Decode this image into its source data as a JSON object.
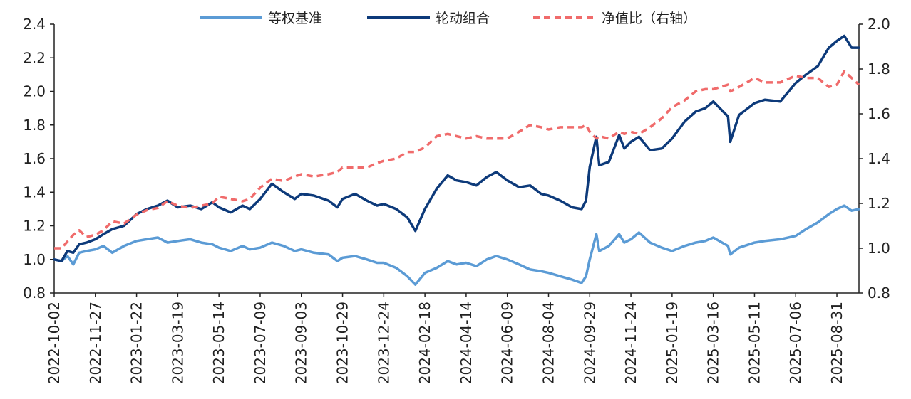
{
  "chart_data": {
    "type": "line",
    "title": "",
    "xlabel": "",
    "ylabel_left": "",
    "ylabel_right": "",
    "ylim_left": [
      0.8,
      2.4
    ],
    "yticks_left": [
      0.8,
      1.0,
      1.2,
      1.4,
      1.6,
      1.8,
      2.0,
      2.2,
      2.4
    ],
    "ylim_right": [
      0.8,
      2.0
    ],
    "yticks_right": [
      0.8,
      1.0,
      1.2,
      1.4,
      1.6,
      1.8,
      2.0
    ],
    "grid": false,
    "legend_position": "top-center",
    "x_range": [
      "2022-10-02",
      "2025-09-30"
    ],
    "x_tick_labels": [
      "2022-10-02",
      "2022-11-27",
      "2023-01-22",
      "2023-03-19",
      "2023-05-14",
      "2023-07-09",
      "2023-09-03",
      "2023-10-29",
      "2023-12-24",
      "2024-02-18",
      "2024-04-14",
      "2024-06-09",
      "2024-08-04",
      "2024-09-29",
      "2024-11-24",
      "2025-01-19",
      "2025-03-16",
      "2025-05-11",
      "2025-07-06",
      "2025-08-31"
    ],
    "series": [
      {
        "name": "等权基准",
        "axis": "left",
        "color": "#5b9bd5",
        "style": "solid",
        "points": [
          [
            "2022-10-02",
            1.0
          ],
          [
            "2022-10-12",
            0.99
          ],
          [
            "2022-10-20",
            1.02
          ],
          [
            "2022-10-28",
            0.97
          ],
          [
            "2022-11-05",
            1.04
          ],
          [
            "2022-11-15",
            1.05
          ],
          [
            "2022-11-27",
            1.06
          ],
          [
            "2022-12-08",
            1.08
          ],
          [
            "2022-12-20",
            1.04
          ],
          [
            "2023-01-05",
            1.08
          ],
          [
            "2023-01-22",
            1.11
          ],
          [
            "2023-02-05",
            1.12
          ],
          [
            "2023-02-20",
            1.13
          ],
          [
            "2023-03-05",
            1.1
          ],
          [
            "2023-03-19",
            1.11
          ],
          [
            "2023-04-05",
            1.12
          ],
          [
            "2023-04-20",
            1.1
          ],
          [
            "2023-05-05",
            1.09
          ],
          [
            "2023-05-14",
            1.07
          ],
          [
            "2023-05-30",
            1.05
          ],
          [
            "2023-06-15",
            1.08
          ],
          [
            "2023-06-25",
            1.06
          ],
          [
            "2023-07-09",
            1.07
          ],
          [
            "2023-07-25",
            1.1
          ],
          [
            "2023-08-10",
            1.08
          ],
          [
            "2023-08-25",
            1.05
          ],
          [
            "2023-09-03",
            1.06
          ],
          [
            "2023-09-20",
            1.04
          ],
          [
            "2023-10-10",
            1.03
          ],
          [
            "2023-10-22",
            0.99
          ],
          [
            "2023-10-29",
            1.01
          ],
          [
            "2023-11-15",
            1.02
          ],
          [
            "2023-12-01",
            1.0
          ],
          [
            "2023-12-15",
            0.98
          ],
          [
            "2023-12-24",
            0.98
          ],
          [
            "2024-01-10",
            0.95
          ],
          [
            "2024-01-25",
            0.9
          ],
          [
            "2024-02-05",
            0.85
          ],
          [
            "2024-02-18",
            0.92
          ],
          [
            "2024-03-05",
            0.95
          ],
          [
            "2024-03-20",
            0.99
          ],
          [
            "2024-04-01",
            0.97
          ],
          [
            "2024-04-14",
            0.98
          ],
          [
            "2024-04-28",
            0.96
          ],
          [
            "2024-05-12",
            1.0
          ],
          [
            "2024-05-25",
            1.02
          ],
          [
            "2024-06-09",
            1.0
          ],
          [
            "2024-06-25",
            0.97
          ],
          [
            "2024-07-10",
            0.94
          ],
          [
            "2024-07-25",
            0.93
          ],
          [
            "2024-08-04",
            0.92
          ],
          [
            "2024-08-20",
            0.9
          ],
          [
            "2024-09-05",
            0.88
          ],
          [
            "2024-09-18",
            0.86
          ],
          [
            "2024-09-24",
            0.9
          ],
          [
            "2024-09-29",
            1.0
          ],
          [
            "2024-10-08",
            1.15
          ],
          [
            "2024-10-12",
            1.05
          ],
          [
            "2024-10-25",
            1.08
          ],
          [
            "2024-11-08",
            1.15
          ],
          [
            "2024-11-15",
            1.1
          ],
          [
            "2024-11-24",
            1.12
          ],
          [
            "2024-12-05",
            1.16
          ],
          [
            "2024-12-20",
            1.1
          ],
          [
            "2025-01-05",
            1.07
          ],
          [
            "2025-01-19",
            1.05
          ],
          [
            "2025-02-05",
            1.08
          ],
          [
            "2025-02-20",
            1.1
          ],
          [
            "2025-03-05",
            1.11
          ],
          [
            "2025-03-16",
            1.13
          ],
          [
            "2025-04-05",
            1.08
          ],
          [
            "2025-04-08",
            1.03
          ],
          [
            "2025-04-20",
            1.07
          ],
          [
            "2025-05-11",
            1.1
          ],
          [
            "2025-05-25",
            1.11
          ],
          [
            "2025-06-15",
            1.12
          ],
          [
            "2025-07-06",
            1.14
          ],
          [
            "2025-07-20",
            1.18
          ],
          [
            "2025-08-05",
            1.22
          ],
          [
            "2025-08-20",
            1.27
          ],
          [
            "2025-08-31",
            1.3
          ],
          [
            "2025-09-10",
            1.32
          ],
          [
            "2025-09-20",
            1.29
          ],
          [
            "2025-09-30",
            1.3
          ]
        ]
      },
      {
        "name": "轮动组合",
        "axis": "left",
        "color": "#0d3a7a",
        "style": "solid",
        "points": [
          [
            "2022-10-02",
            1.0
          ],
          [
            "2022-10-12",
            0.99
          ],
          [
            "2022-10-20",
            1.05
          ],
          [
            "2022-10-28",
            1.04
          ],
          [
            "2022-11-05",
            1.09
          ],
          [
            "2022-11-15",
            1.1
          ],
          [
            "2022-11-27",
            1.12
          ],
          [
            "2022-12-08",
            1.15
          ],
          [
            "2022-12-20",
            1.18
          ],
          [
            "2023-01-05",
            1.2
          ],
          [
            "2023-01-22",
            1.27
          ],
          [
            "2023-02-05",
            1.3
          ],
          [
            "2023-02-20",
            1.32
          ],
          [
            "2023-03-05",
            1.35
          ],
          [
            "2023-03-19",
            1.31
          ],
          [
            "2023-04-05",
            1.32
          ],
          [
            "2023-04-20",
            1.3
          ],
          [
            "2023-05-05",
            1.34
          ],
          [
            "2023-05-14",
            1.31
          ],
          [
            "2023-05-30",
            1.28
          ],
          [
            "2023-06-15",
            1.32
          ],
          [
            "2023-06-25",
            1.3
          ],
          [
            "2023-07-09",
            1.36
          ],
          [
            "2023-07-25",
            1.45
          ],
          [
            "2023-08-10",
            1.4
          ],
          [
            "2023-08-25",
            1.36
          ],
          [
            "2023-09-03",
            1.39
          ],
          [
            "2023-09-20",
            1.38
          ],
          [
            "2023-10-10",
            1.35
          ],
          [
            "2023-10-22",
            1.31
          ],
          [
            "2023-10-29",
            1.36
          ],
          [
            "2023-11-15",
            1.39
          ],
          [
            "2023-12-01",
            1.35
          ],
          [
            "2023-12-15",
            1.32
          ],
          [
            "2023-12-24",
            1.33
          ],
          [
            "2024-01-10",
            1.3
          ],
          [
            "2024-01-25",
            1.25
          ],
          [
            "2024-02-05",
            1.17
          ],
          [
            "2024-02-18",
            1.3
          ],
          [
            "2024-03-05",
            1.42
          ],
          [
            "2024-03-20",
            1.5
          ],
          [
            "2024-04-01",
            1.47
          ],
          [
            "2024-04-14",
            1.46
          ],
          [
            "2024-04-28",
            1.44
          ],
          [
            "2024-05-12",
            1.49
          ],
          [
            "2024-05-25",
            1.52
          ],
          [
            "2024-06-09",
            1.47
          ],
          [
            "2024-06-25",
            1.43
          ],
          [
            "2024-07-10",
            1.44
          ],
          [
            "2024-07-25",
            1.39
          ],
          [
            "2024-08-04",
            1.38
          ],
          [
            "2024-08-20",
            1.35
          ],
          [
            "2024-09-05",
            1.31
          ],
          [
            "2024-09-18",
            1.3
          ],
          [
            "2024-09-24",
            1.35
          ],
          [
            "2024-09-29",
            1.55
          ],
          [
            "2024-10-08",
            1.73
          ],
          [
            "2024-10-12",
            1.56
          ],
          [
            "2024-10-25",
            1.58
          ],
          [
            "2024-11-08",
            1.74
          ],
          [
            "2024-11-15",
            1.66
          ],
          [
            "2024-11-24",
            1.7
          ],
          [
            "2024-12-05",
            1.73
          ],
          [
            "2024-12-20",
            1.65
          ],
          [
            "2025-01-05",
            1.66
          ],
          [
            "2025-01-19",
            1.72
          ],
          [
            "2025-02-05",
            1.82
          ],
          [
            "2025-02-20",
            1.88
          ],
          [
            "2025-03-05",
            1.9
          ],
          [
            "2025-03-16",
            1.94
          ],
          [
            "2025-04-05",
            1.85
          ],
          [
            "2025-04-08",
            1.7
          ],
          [
            "2025-04-20",
            1.86
          ],
          [
            "2025-05-11",
            1.93
          ],
          [
            "2025-05-25",
            1.95
          ],
          [
            "2025-06-15",
            1.94
          ],
          [
            "2025-07-06",
            2.05
          ],
          [
            "2025-07-20",
            2.1
          ],
          [
            "2025-08-05",
            2.15
          ],
          [
            "2025-08-20",
            2.26
          ],
          [
            "2025-08-31",
            2.3
          ],
          [
            "2025-09-10",
            2.33
          ],
          [
            "2025-09-20",
            2.26
          ],
          [
            "2025-09-30",
            2.26
          ]
        ]
      },
      {
        "name": "净值比（右轴）",
        "axis": "right",
        "color": "#f06b6b",
        "style": "dashed",
        "points": [
          [
            "2022-10-02",
            1.0
          ],
          [
            "2022-10-12",
            1.0
          ],
          [
            "2022-10-20",
            1.03
          ],
          [
            "2022-10-28",
            1.06
          ],
          [
            "2022-11-05",
            1.08
          ],
          [
            "2022-11-15",
            1.05
          ],
          [
            "2022-11-27",
            1.06
          ],
          [
            "2022-12-08",
            1.08
          ],
          [
            "2022-12-20",
            1.12
          ],
          [
            "2023-01-05",
            1.11
          ],
          [
            "2023-01-22",
            1.15
          ],
          [
            "2023-02-05",
            1.17
          ],
          [
            "2023-02-20",
            1.18
          ],
          [
            "2023-03-05",
            1.21
          ],
          [
            "2023-03-19",
            1.19
          ],
          [
            "2023-04-05",
            1.18
          ],
          [
            "2023-04-20",
            1.19
          ],
          [
            "2023-05-05",
            1.2
          ],
          [
            "2023-05-14",
            1.23
          ],
          [
            "2023-05-30",
            1.22
          ],
          [
            "2023-06-15",
            1.21
          ],
          [
            "2023-06-25",
            1.22
          ],
          [
            "2023-07-09",
            1.27
          ],
          [
            "2023-07-25",
            1.31
          ],
          [
            "2023-08-10",
            1.3
          ],
          [
            "2023-08-25",
            1.32
          ],
          [
            "2023-09-03",
            1.33
          ],
          [
            "2023-09-20",
            1.32
          ],
          [
            "2023-10-10",
            1.33
          ],
          [
            "2023-10-22",
            1.34
          ],
          [
            "2023-10-29",
            1.36
          ],
          [
            "2023-11-15",
            1.36
          ],
          [
            "2023-12-01",
            1.36
          ],
          [
            "2023-12-15",
            1.38
          ],
          [
            "2023-12-24",
            1.39
          ],
          [
            "2024-01-10",
            1.4
          ],
          [
            "2024-01-25",
            1.43
          ],
          [
            "2024-02-05",
            1.43
          ],
          [
            "2024-02-18",
            1.45
          ],
          [
            "2024-03-05",
            1.5
          ],
          [
            "2024-03-20",
            1.51
          ],
          [
            "2024-04-01",
            1.5
          ],
          [
            "2024-04-14",
            1.49
          ],
          [
            "2024-04-28",
            1.5
          ],
          [
            "2024-05-12",
            1.49
          ],
          [
            "2024-05-25",
            1.49
          ],
          [
            "2024-06-09",
            1.49
          ],
          [
            "2024-06-25",
            1.52
          ],
          [
            "2024-07-10",
            1.55
          ],
          [
            "2024-07-25",
            1.54
          ],
          [
            "2024-08-04",
            1.53
          ],
          [
            "2024-08-20",
            1.54
          ],
          [
            "2024-09-05",
            1.54
          ],
          [
            "2024-09-18",
            1.54
          ],
          [
            "2024-09-24",
            1.55
          ],
          [
            "2024-09-29",
            1.52
          ],
          [
            "2024-10-08",
            1.49
          ],
          [
            "2024-10-12",
            1.5
          ],
          [
            "2024-10-25",
            1.49
          ],
          [
            "2024-11-08",
            1.52
          ],
          [
            "2024-11-15",
            1.51
          ],
          [
            "2024-11-24",
            1.52
          ],
          [
            "2024-12-05",
            1.51
          ],
          [
            "2024-12-20",
            1.54
          ],
          [
            "2025-01-05",
            1.58
          ],
          [
            "2025-01-19",
            1.63
          ],
          [
            "2025-02-05",
            1.66
          ],
          [
            "2025-02-20",
            1.7
          ],
          [
            "2025-03-05",
            1.71
          ],
          [
            "2025-03-16",
            1.71
          ],
          [
            "2025-04-05",
            1.73
          ],
          [
            "2025-04-08",
            1.7
          ],
          [
            "2025-04-20",
            1.72
          ],
          [
            "2025-05-11",
            1.76
          ],
          [
            "2025-05-25",
            1.74
          ],
          [
            "2025-06-15",
            1.74
          ],
          [
            "2025-07-06",
            1.77
          ],
          [
            "2025-07-20",
            1.76
          ],
          [
            "2025-08-05",
            1.76
          ],
          [
            "2025-08-20",
            1.72
          ],
          [
            "2025-08-31",
            1.73
          ],
          [
            "2025-09-10",
            1.79
          ],
          [
            "2025-09-20",
            1.76
          ],
          [
            "2025-09-30",
            1.73
          ]
        ]
      }
    ]
  }
}
